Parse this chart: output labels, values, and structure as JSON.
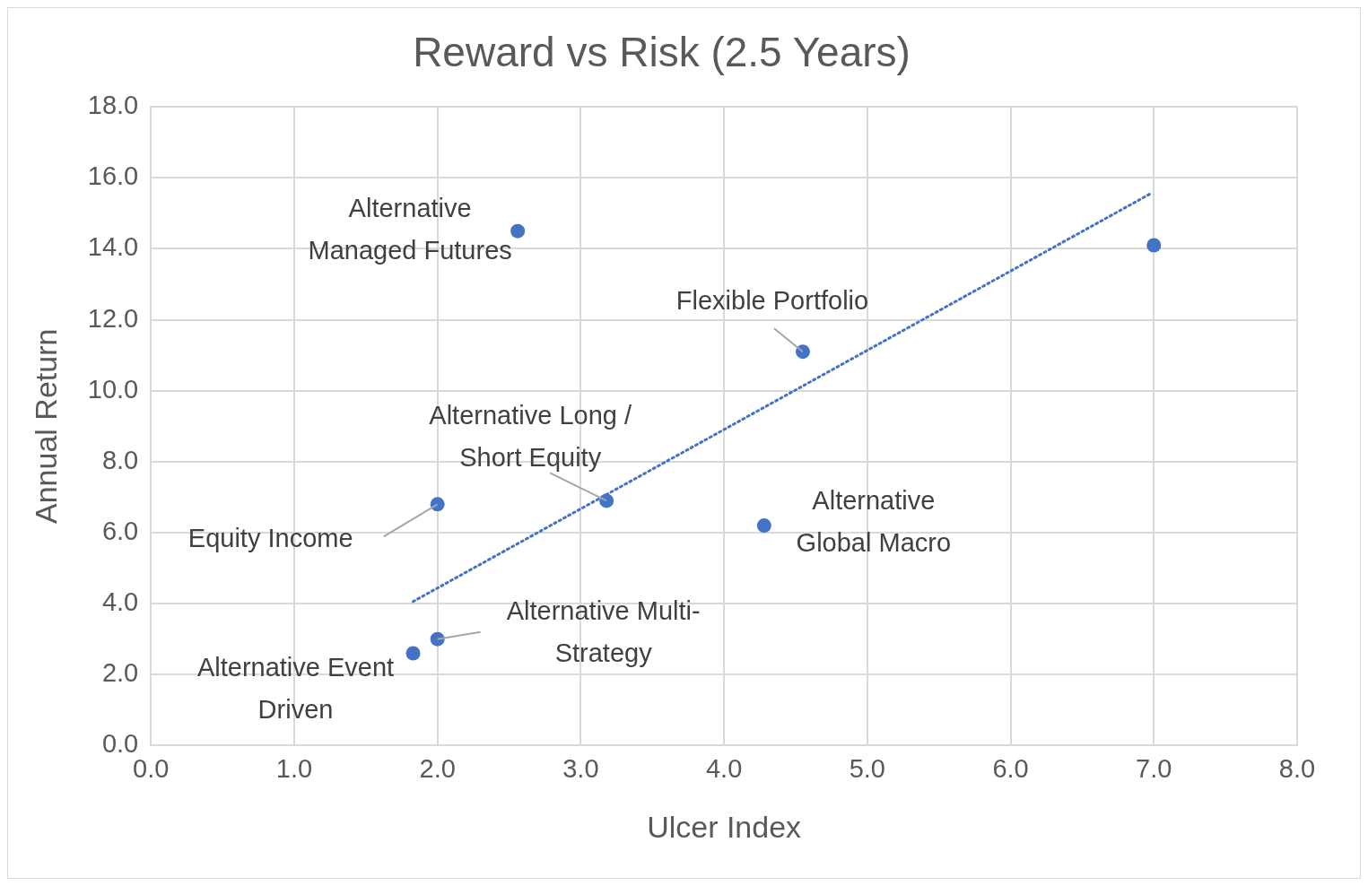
{
  "chart_data": {
    "type": "scatter",
    "title": "Reward vs Risk (2.5 Years)",
    "xlabel": "Ulcer Index",
    "ylabel": "Annual Return",
    "xlim": [
      0,
      8
    ],
    "xticks": [
      {
        "value": 0,
        "label": "0.0"
      },
      {
        "value": 1,
        "label": "1.0"
      },
      {
        "value": 2,
        "label": "2.0"
      },
      {
        "value": 3,
        "label": "3.0"
      },
      {
        "value": 4,
        "label": "4.0"
      },
      {
        "value": 5,
        "label": "5.0"
      },
      {
        "value": 6,
        "label": "6.0"
      },
      {
        "value": 7,
        "label": "7.0"
      },
      {
        "value": 8,
        "label": "8.0"
      }
    ],
    "ylim": [
      0,
      18
    ],
    "yticks": [
      {
        "value": 0,
        "label": "0.0"
      },
      {
        "value": 2,
        "label": "2.0"
      },
      {
        "value": 4,
        "label": "4.0"
      },
      {
        "value": 6,
        "label": "6.0"
      },
      {
        "value": 8,
        "label": "8.0"
      },
      {
        "value": 10,
        "label": "10.0"
      },
      {
        "value": 12,
        "label": "12.0"
      },
      {
        "value": 14,
        "label": "14.0"
      },
      {
        "value": 16,
        "label": "16.0"
      },
      {
        "value": 18,
        "label": "18.0"
      }
    ],
    "grid": true,
    "legend": false,
    "series": [
      {
        "type": "scatter",
        "color": "#4472c4",
        "marker": "circle",
        "x": [
          2.56,
          7.0,
          4.55,
          3.18,
          4.28,
          2.0,
          2.0,
          1.83
        ],
        "values": [
          14.5,
          14.1,
          11.1,
          6.9,
          6.2,
          6.8,
          3.0,
          2.6
        ]
      },
      {
        "type": "line",
        "color": "#4472c4",
        "marker": "none",
        "line_style": "dotted",
        "x": [
          1.83,
          6.97
        ],
        "values": [
          4.06,
          15.54
        ]
      }
    ],
    "annotations": [
      {
        "text": "Alternative Managed Futures",
        "x": 2.56,
        "y": 14.5
      },
      {
        "text": "Flexible Portfolio",
        "x": 4.55,
        "y": 11.1
      },
      {
        "text": "Alternative Long / Short Equity",
        "x": 3.18,
        "y": 6.9
      },
      {
        "text": "Alternative Global Macro",
        "x": 4.28,
        "y": 6.2
      },
      {
        "text": "Equity Income",
        "x": 2.0,
        "y": 6.8
      },
      {
        "text": "Alternative Multi-Strategy",
        "x": 2.0,
        "y": 3.0
      },
      {
        "text": "Alternative Event Driven",
        "x": 1.83,
        "y": 2.6
      }
    ]
  }
}
